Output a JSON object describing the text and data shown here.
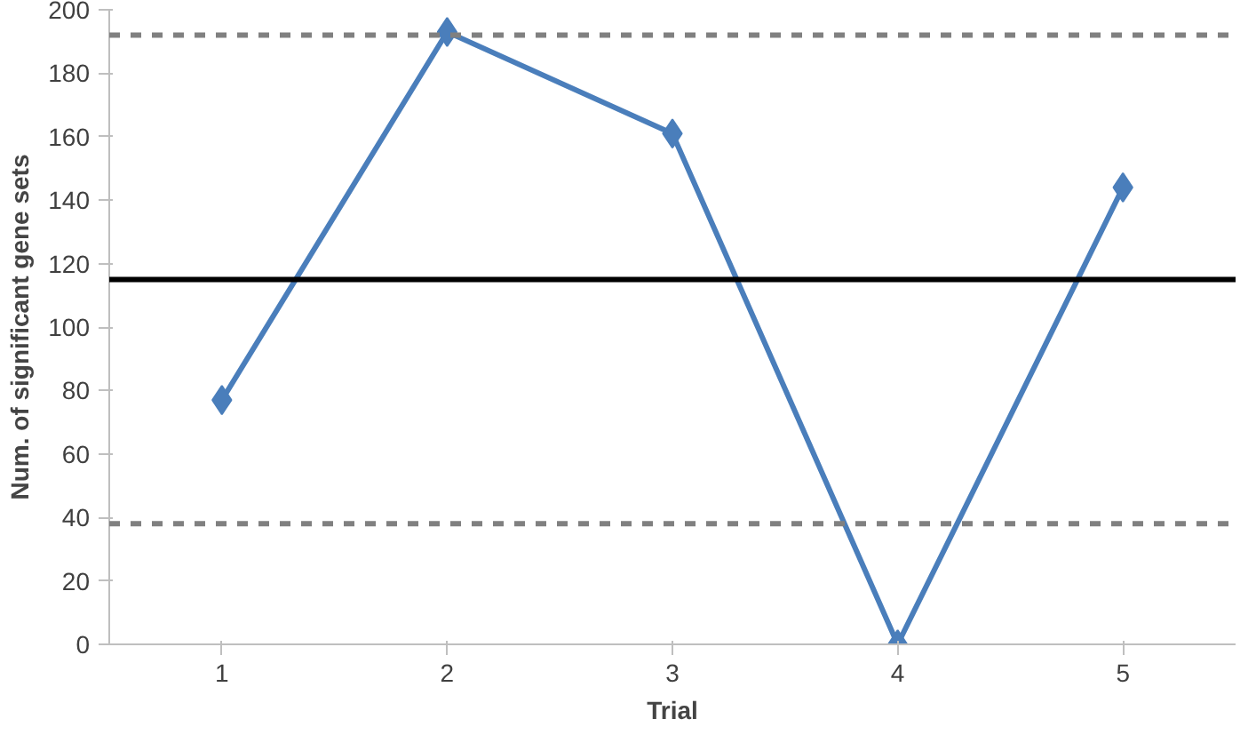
{
  "chart_data": {
    "type": "line",
    "xlabel": "Trial",
    "ylabel": "Num. of significant gene sets",
    "categories": [
      "1",
      "2",
      "3",
      "4",
      "5"
    ],
    "series": [
      {
        "color": "#4a7ebb",
        "values": [
          77,
          193,
          161,
          0,
          144
        ]
      }
    ],
    "ylim": [
      0,
      200
    ],
    "yticks": [
      0,
      20,
      40,
      60,
      80,
      100,
      120,
      140,
      160,
      180,
      200
    ],
    "ref_lines": [
      {
        "axis": "y",
        "value": 192,
        "color": "#808080",
        "line_style": "dashed"
      },
      {
        "axis": "y",
        "value": 115,
        "color": "#000000",
        "line_style": "solid"
      },
      {
        "axis": "y",
        "value": 38,
        "color": "#808080",
        "line_style": "dashed"
      }
    ],
    "marker": "diamond",
    "line_style": "solid"
  }
}
